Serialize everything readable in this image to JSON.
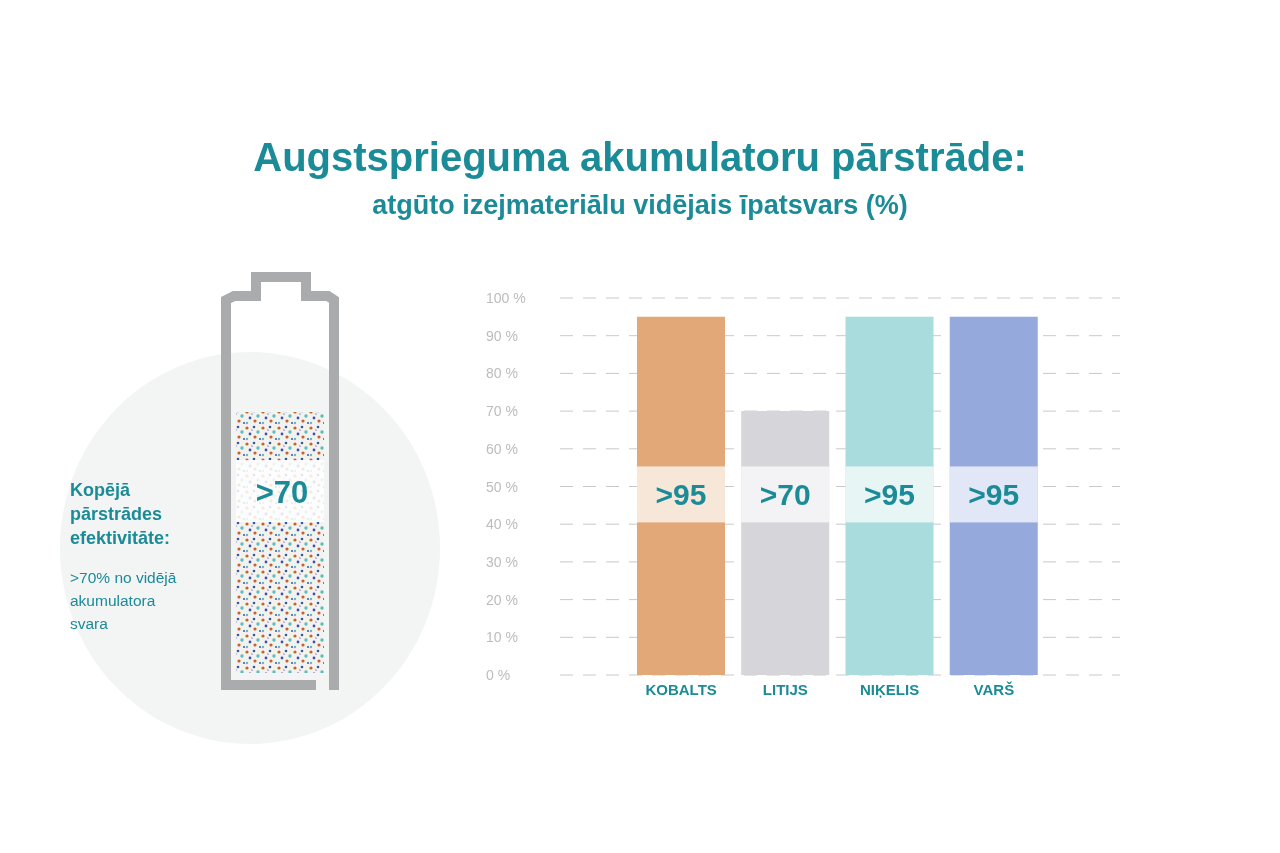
{
  "chart_data": {
    "type": "bar",
    "title": "Augstsprieguma akumulatoru pārstrāde:",
    "subtitle": "atgūto izejmateriālu vidējais īpatsvars (%)",
    "categories": [
      "KOBALTS",
      "LITIJS",
      "NIĶELIS",
      "VARŠ"
    ],
    "values": [
      95,
      70,
      95,
      95
    ],
    "colors": [
      "#e3a878",
      "#d5d5da",
      "#a9dcdc",
      "#95a9dd"
    ],
    "value_labels": [
      ">95",
      ">70",
      ">95",
      ">95"
    ],
    "ylim": [
      0,
      100
    ],
    "yticks": [
      {
        "value": 0,
        "label": "0 %"
      },
      {
        "value": 10,
        "label": "10 %"
      },
      {
        "value": 20,
        "label": "20 %"
      },
      {
        "value": 30,
        "label": "30 %"
      },
      {
        "value": 40,
        "label": "40 %"
      },
      {
        "value": 50,
        "label": "50 %"
      },
      {
        "value": 60,
        "label": "60 %"
      },
      {
        "value": 70,
        "label": "70 %"
      },
      {
        "value": 80,
        "label": "80 %"
      },
      {
        "value": 90,
        "label": "90 %"
      },
      {
        "value": 100,
        "label": "100 %"
      }
    ],
    "grid": "y",
    "annotations": [
      ">70",
      "Kopējā pārstrādes efektivitāte:",
      ">70% no vidējā akumulatora svara"
    ]
  }
}
